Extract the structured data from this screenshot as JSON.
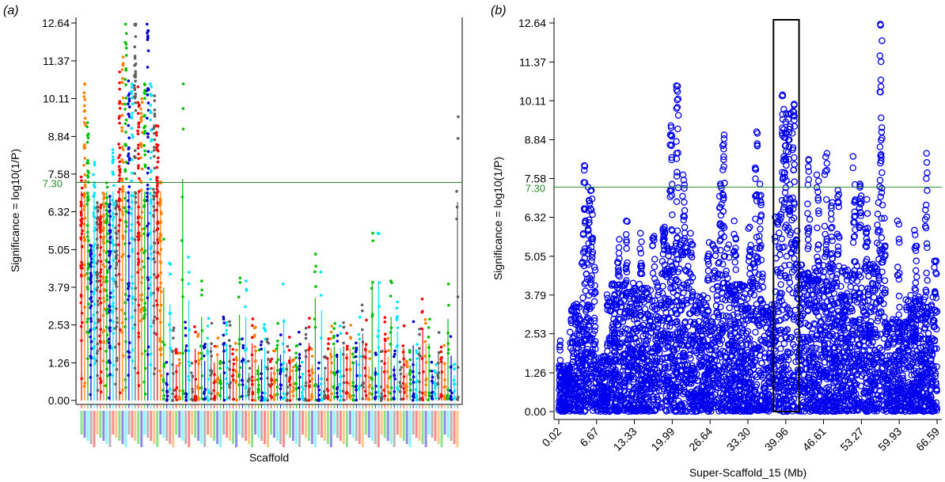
{
  "chart_data": [
    {
      "panel_label": "(a)",
      "type": "scatter",
      "title": "",
      "xlabel": "Scaffold",
      "ylabel": "Significance = log10(1/P)",
      "yticks": [
        "0.00",
        "1.26",
        "2.53",
        "3.79",
        "5.05",
        "6.32",
        "7.58",
        "8.84",
        "10.11",
        "11.37",
        "12.64"
      ],
      "ylim": [
        0,
        12.64
      ],
      "threshold": {
        "value": 7.3,
        "label": "7.30",
        "color": "#2e8b2e"
      },
      "series_colors": [
        "#ff0000",
        "#ff8000",
        "#00c000",
        "#0000cc",
        "#00e5ff",
        "#606060"
      ],
      "scaffold_count": 120,
      "legend": "none",
      "grid": false,
      "peaks": [
        {
          "scaffold": 1,
          "max": 10.6
        },
        {
          "scaffold": 2,
          "max": 9.3
        },
        {
          "scaffold": 3,
          "max": 5.2
        },
        {
          "scaffold": 10,
          "max": 8.4
        },
        {
          "scaffold": 12,
          "max": 11.0
        },
        {
          "scaffold": 13,
          "max": 11.5
        },
        {
          "scaffold": 14,
          "max": 12.6
        },
        {
          "scaffold": 15,
          "max": 10.7
        },
        {
          "scaffold": 16,
          "max": 10.6
        },
        {
          "scaffold": 17,
          "max": 12.6
        },
        {
          "scaffold": 18,
          "max": 10.5
        },
        {
          "scaffold": 19,
          "max": 10.1
        },
        {
          "scaffold": 20,
          "max": 10.6
        },
        {
          "scaffold": 21,
          "max": 12.6
        },
        {
          "scaffold": 22,
          "max": 10.6
        },
        {
          "scaffold": 23,
          "max": 10.2
        },
        {
          "scaffold": 24,
          "max": 9.2
        },
        {
          "scaffold": 26,
          "max": 5.4
        },
        {
          "scaffold": 28,
          "max": 4.6
        },
        {
          "scaffold": 32,
          "max": 10.6
        },
        {
          "scaffold": 34,
          "max": 4.8
        },
        {
          "scaffold": 38,
          "max": 4.0
        },
        {
          "scaffold": 50,
          "max": 4.1
        },
        {
          "scaffold": 52,
          "max": 4.0
        },
        {
          "scaffold": 64,
          "max": 3.9
        },
        {
          "scaffold": 74,
          "max": 4.9
        },
        {
          "scaffold": 76,
          "max": 4.3
        },
        {
          "scaffold": 89,
          "max": 3.2
        },
        {
          "scaffold": 92,
          "max": 5.6
        },
        {
          "scaffold": 94,
          "max": 5.6
        },
        {
          "scaffold": 98,
          "max": 4.0
        },
        {
          "scaffold": 100,
          "max": 3.3
        },
        {
          "scaffold": 108,
          "max": 3.4
        },
        {
          "scaffold": 116,
          "max": 3.9
        },
        {
          "scaffold": 119,
          "max": 9.5
        }
      ]
    },
    {
      "panel_label": "(b)",
      "type": "scatter",
      "title": "",
      "xlabel": "Super-Scaffold_15 (Mb)",
      "ylabel": "Significance = log10(1/P)",
      "xticks": [
        "0.02",
        "6.67",
        "13.33",
        "19.99",
        "26.64",
        "33.30",
        "39.96",
        "46.61",
        "53.27",
        "59.93",
        "66.59"
      ],
      "xlim": [
        0.02,
        66.59
      ],
      "yticks": [
        "0.00",
        "1.26",
        "2.53",
        "3.79",
        "5.05",
        "6.32",
        "7.58",
        "8.84",
        "10.11",
        "11.37",
        "12.64"
      ],
      "ylim": [
        0,
        12.64
      ],
      "threshold": {
        "value": 7.3,
        "label": "7.30",
        "color": "#2e8b2e"
      },
      "marker_color": "#0000ee",
      "highlight_region": {
        "x": [
          37.8,
          42.3
        ],
        "y": [
          0,
          12.64
        ]
      },
      "legend": "none",
      "grid": false,
      "peaks": [
        {
          "x": 0.2,
          "max": 2.3
        },
        {
          "x": 4.5,
          "max": 8.0
        },
        {
          "x": 5.3,
          "max": 7.3
        },
        {
          "x": 5.8,
          "max": 7.2
        },
        {
          "x": 10.5,
          "max": 5.6
        },
        {
          "x": 12.0,
          "max": 6.2
        },
        {
          "x": 14.5,
          "max": 5.8
        },
        {
          "x": 16.7,
          "max": 5.7
        },
        {
          "x": 18.5,
          "max": 6.0
        },
        {
          "x": 19.8,
          "max": 9.3
        },
        {
          "x": 20.9,
          "max": 10.6
        },
        {
          "x": 22.0,
          "max": 7.7
        },
        {
          "x": 23.4,
          "max": 5.8
        },
        {
          "x": 26.3,
          "max": 5.5
        },
        {
          "x": 28.5,
          "max": 7.4
        },
        {
          "x": 29.0,
          "max": 9.0
        },
        {
          "x": 31.0,
          "max": 6.2
        },
        {
          "x": 33.6,
          "max": 6.0
        },
        {
          "x": 34.8,
          "max": 9.1
        },
        {
          "x": 35.5,
          "max": 7.4
        },
        {
          "x": 39.5,
          "max": 10.3
        },
        {
          "x": 39.9,
          "max": 9.7
        },
        {
          "x": 40.6,
          "max": 9.7
        },
        {
          "x": 41.3,
          "max": 10.0
        },
        {
          "x": 44.0,
          "max": 8.2
        },
        {
          "x": 45.6,
          "max": 7.7
        },
        {
          "x": 47.0,
          "max": 8.4
        },
        {
          "x": 48.0,
          "max": 6.8
        },
        {
          "x": 49.2,
          "max": 7.2
        },
        {
          "x": 52.0,
          "max": 8.3
        },
        {
          "x": 53.1,
          "max": 7.4
        },
        {
          "x": 54.2,
          "max": 6.9
        },
        {
          "x": 56.7,
          "max": 12.6
        },
        {
          "x": 59.8,
          "max": 6.2
        },
        {
          "x": 62.8,
          "max": 5.9
        },
        {
          "x": 64.7,
          "max": 8.4
        },
        {
          "x": 66.3,
          "max": 4.9
        }
      ]
    }
  ]
}
